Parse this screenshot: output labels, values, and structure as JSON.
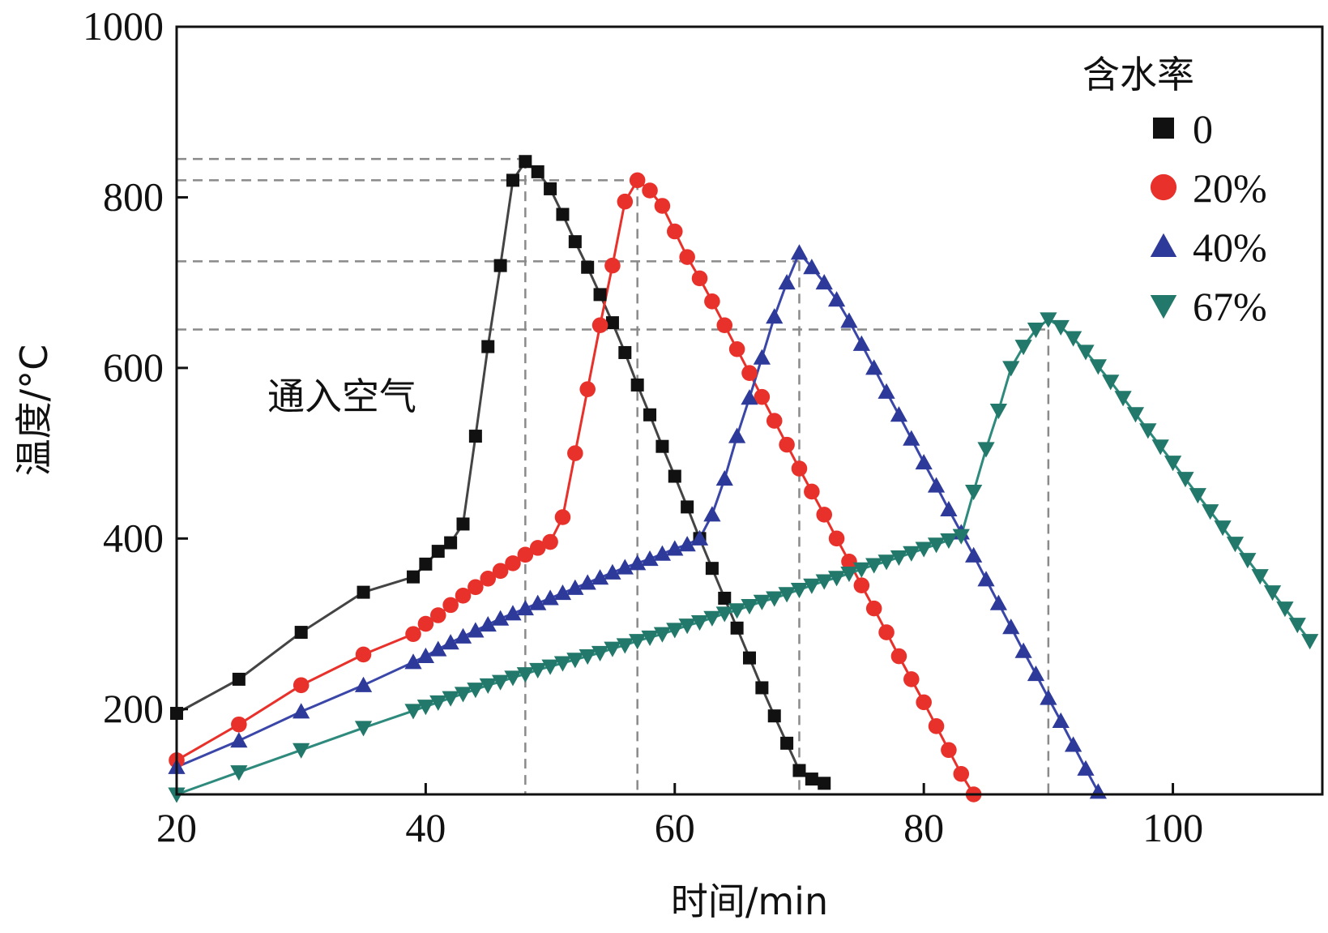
{
  "chart_data": {
    "type": "line",
    "title": "",
    "xlabel": "时间/min",
    "ylabel": "温度/°C",
    "xlim": [
      20,
      112
    ],
    "ylim": [
      100,
      1000
    ],
    "xticks": [
      20,
      40,
      60,
      80,
      100
    ],
    "yticks": [
      200,
      400,
      600,
      800,
      1000
    ],
    "grid": false,
    "legend": {
      "title": "含水率",
      "placement": "top-right"
    },
    "annotations": [
      {
        "text": "通入空气",
        "x": 35,
        "y": 575
      }
    ],
    "reference_lines": [
      {
        "series": "0",
        "x": 48,
        "y": 845
      },
      {
        "series": "20%",
        "x": 57,
        "y": 820
      },
      {
        "series": "40%",
        "x": 70,
        "y": 725
      },
      {
        "series": "67%",
        "x": 90,
        "y": 645
      }
    ],
    "series": [
      {
        "name": "0",
        "color": "#111111",
        "line_color": "#444444",
        "marker": "square",
        "x": [
          20,
          25,
          30,
          35,
          39,
          40,
          41,
          42,
          43,
          44,
          45,
          46,
          47,
          48,
          49,
          50,
          51,
          52,
          53,
          54,
          55,
          56,
          57,
          58,
          59,
          60,
          61,
          62,
          63,
          64,
          65,
          66,
          67,
          68,
          69,
          70,
          71,
          72
        ],
        "y": [
          195,
          235,
          290,
          337,
          355,
          370,
          385,
          395,
          417,
          520,
          625,
          720,
          820,
          842,
          830,
          810,
          780,
          748,
          718,
          686,
          653,
          618,
          580,
          545,
          508,
          473,
          437,
          400,
          365,
          330,
          295,
          260,
          225,
          192,
          160,
          128,
          118,
          113
        ]
      },
      {
        "name": "20%",
        "color": "#e8312a",
        "line_color": "#e8312a",
        "marker": "circle",
        "x": [
          20,
          25,
          30,
          35,
          39,
          40,
          41,
          42,
          43,
          44,
          45,
          46,
          47,
          48,
          49,
          50,
          51,
          52,
          53,
          54,
          55,
          56,
          57,
          58,
          59,
          60,
          61,
          62,
          63,
          64,
          65,
          66,
          67,
          68,
          69,
          70,
          71,
          72,
          73,
          74,
          75,
          76,
          77,
          78,
          79,
          80,
          81,
          82,
          83,
          84
        ],
        "y": [
          140,
          182,
          228,
          264,
          288,
          300,
          310,
          322,
          333,
          343,
          353,
          362,
          371,
          381,
          389,
          396,
          425,
          500,
          575,
          650,
          720,
          795,
          820,
          808,
          790,
          760,
          730,
          705,
          678,
          650,
          622,
          594,
          566,
          538,
          510,
          482,
          455,
          428,
          400,
          373,
          345,
          318,
          290,
          262,
          235,
          208,
          180,
          152,
          124,
          100
        ]
      },
      {
        "name": "40%",
        "color": "#2e3a9a",
        "line_color": "#3a46a8",
        "marker": "triangle-up",
        "x": [
          20,
          25,
          30,
          35,
          39,
          40,
          41,
          42,
          43,
          44,
          45,
          46,
          47,
          48,
          49,
          50,
          51,
          52,
          53,
          54,
          55,
          56,
          57,
          58,
          59,
          60,
          61,
          62,
          63,
          64,
          65,
          66,
          67,
          68,
          69,
          70,
          71,
          72,
          73,
          74,
          75,
          76,
          77,
          78,
          79,
          80,
          81,
          82,
          83,
          84,
          85,
          86,
          87,
          88,
          89,
          90,
          91,
          92,
          93,
          94
        ],
        "y": [
          132,
          163,
          197,
          228,
          255,
          262,
          270,
          278,
          285,
          292,
          299,
          306,
          312,
          318,
          324,
          330,
          336,
          342,
          348,
          354,
          360,
          366,
          371,
          376,
          382,
          388,
          393,
          400,
          428,
          470,
          520,
          565,
          612,
          660,
          700,
          735,
          718,
          700,
          680,
          655,
          628,
          600,
          572,
          545,
          517,
          489,
          462,
          434,
          407,
          380,
          352,
          324,
          296,
          268,
          241,
          213,
          186,
          158,
          130,
          103
        ]
      },
      {
        "name": "67%",
        "color": "#22786a",
        "line_color": "#2e8a7c",
        "marker": "triangle-down",
        "x": [
          20,
          25,
          30,
          35,
          39,
          40,
          41,
          42,
          43,
          44,
          45,
          46,
          47,
          48,
          49,
          50,
          51,
          52,
          53,
          54,
          55,
          56,
          57,
          58,
          59,
          60,
          61,
          62,
          63,
          64,
          65,
          66,
          67,
          68,
          69,
          70,
          71,
          72,
          73,
          74,
          75,
          76,
          77,
          78,
          79,
          80,
          81,
          82,
          83,
          84,
          85,
          86,
          87,
          88,
          89,
          90,
          91,
          92,
          93,
          94,
          95,
          96,
          97,
          98,
          99,
          100,
          101,
          102,
          103,
          104,
          105,
          106,
          107,
          108,
          109,
          110,
          111
        ],
        "y": [
          100,
          126,
          152,
          178,
          198,
          203,
          208,
          213,
          218,
          223,
          228,
          232,
          237,
          241,
          246,
          250,
          254,
          258,
          262,
          266,
          271,
          275,
          280,
          284,
          288,
          293,
          298,
          302,
          307,
          312,
          316,
          321,
          326,
          330,
          335,
          340,
          345,
          350,
          354,
          359,
          364,
          369,
          373,
          378,
          383,
          388,
          393,
          398,
          403,
          455,
          505,
          550,
          600,
          625,
          645,
          657,
          648,
          635,
          619,
          602,
          584,
          565,
          546,
          527,
          508,
          489,
          470,
          451,
          432,
          413,
          394,
          375,
          356,
          337,
          318,
          299,
          280
        ]
      }
    ]
  }
}
